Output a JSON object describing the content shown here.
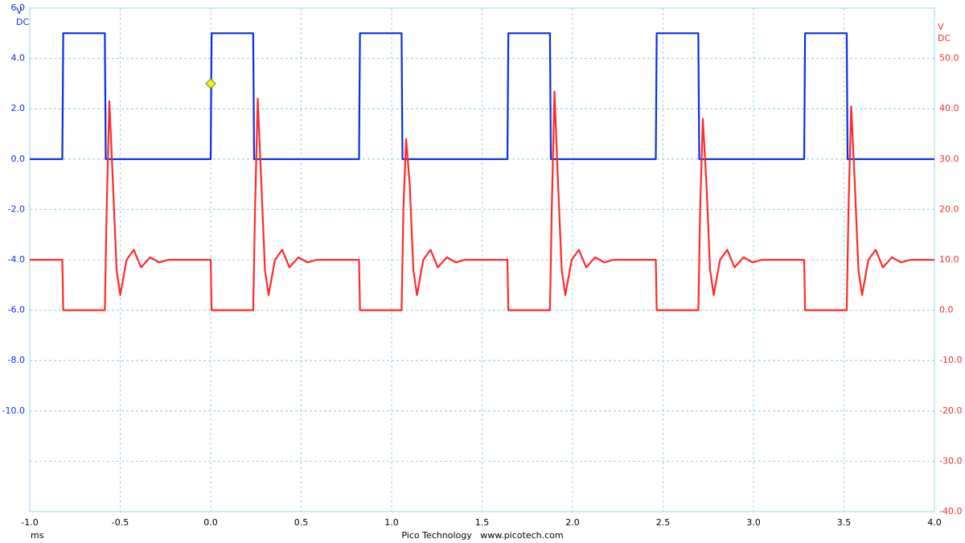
{
  "chart_data": {
    "type": "line",
    "y_unit": [
      "V",
      "DC"
    ],
    "y2_unit": [
      "V",
      "DC"
    ],
    "x_unit": "ms",
    "footer": "Pico Technology   www.picotech.com",
    "xlim": [
      -1.0,
      4.0
    ],
    "xticks": [
      {
        "value": -1.0,
        "label": "-1.0"
      },
      -0.5,
      {
        "value": 0,
        "label": "0.0"
      },
      0.5,
      {
        "value": 1,
        "label": "1.0"
      },
      1.5,
      {
        "value": 2,
        "label": "2.0"
      },
      2.5,
      {
        "value": 3,
        "label": "3.0"
      },
      3.5,
      {
        "value": 4,
        "label": "4.0"
      }
    ],
    "ylim": [
      -14,
      6
    ],
    "yticks": [
      {
        "value": 6,
        "label": "6.0"
      },
      {
        "value": 4,
        "label": "4.0"
      },
      {
        "value": 2,
        "label": "2.0"
      },
      {
        "value": 0,
        "label": "0.0"
      },
      {
        "value": -2,
        "label": "-2.0"
      },
      {
        "value": -4,
        "label": "-4.0"
      },
      {
        "value": -6,
        "label": "-6.0"
      },
      {
        "value": -8,
        "label": "-8.0"
      },
      {
        "value": -10,
        "label": "-10.0"
      }
    ],
    "y2lim": [
      -40,
      60
    ],
    "y2ticks": [
      {
        "value": 50,
        "label": "50.0"
      },
      {
        "value": 40,
        "label": "40.0"
      },
      {
        "value": 30,
        "label": "30.0"
      },
      {
        "value": 20,
        "label": "20.0"
      },
      {
        "value": 10,
        "label": "10.0"
      },
      {
        "value": 0,
        "label": "0.0"
      },
      {
        "value": -10,
        "label": "-10.0"
      },
      {
        "value": -20,
        "label": "-20.0"
      },
      {
        "value": -30,
        "label": "-30.0"
      },
      {
        "value": -40,
        "label": "-40.0"
      }
    ],
    "grid": true,
    "axis_colors": {
      "y": "#1030d8",
      "y2": "#f03030"
    },
    "trigger": {
      "x": 0,
      "y": 3,
      "color": "#f0f020"
    },
    "series": [
      {
        "color": "#0a2fdc",
        "axis": "y",
        "x": [
          -1.0,
          -0.82,
          -0.815,
          -0.585,
          -0.58,
          0.0,
          0.005,
          0.235,
          0.24,
          0.82,
          0.825,
          1.055,
          1.06,
          1.64,
          1.645,
          1.875,
          1.88,
          2.46,
          2.465,
          2.695,
          2.7,
          3.28,
          3.285,
          3.515,
          3.52,
          4.0
        ],
        "values": [
          0,
          0,
          5,
          5,
          0,
          0,
          5,
          5,
          0,
          0,
          5,
          5,
          0,
          0,
          5,
          5,
          0,
          0,
          5,
          5,
          0,
          0,
          5,
          5,
          0,
          0
        ]
      },
      {
        "color": "#ff2a2a",
        "axis": "y2",
        "x": [
          -1.0,
          -0.82,
          -0.815,
          -0.585,
          -0.575,
          -0.56,
          -0.54,
          -0.52,
          -0.5,
          -0.465,
          -0.425,
          -0.385,
          -0.335,
          -0.285,
          -0.235,
          0.0,
          0.005,
          0.235,
          0.245,
          0.26,
          0.28,
          0.3,
          0.32,
          0.355,
          0.395,
          0.435,
          0.485,
          0.535,
          0.585,
          0.82,
          0.825,
          1.055,
          1.065,
          1.08,
          1.1,
          1.12,
          1.14,
          1.175,
          1.215,
          1.255,
          1.305,
          1.355,
          1.405,
          1.64,
          1.645,
          1.875,
          1.885,
          1.9,
          1.92,
          1.94,
          1.96,
          1.995,
          2.035,
          2.075,
          2.125,
          2.175,
          2.225,
          2.46,
          2.465,
          2.695,
          2.705,
          2.72,
          2.74,
          2.76,
          2.78,
          2.815,
          2.855,
          2.895,
          2.945,
          2.995,
          3.045,
          3.28,
          3.285,
          3.515,
          3.525,
          3.54,
          3.56,
          3.58,
          3.6,
          3.635,
          3.675,
          3.715,
          3.765,
          3.815,
          3.865,
          4.0
        ],
        "values": [
          10,
          10,
          0,
          0,
          20,
          41.5,
          25,
          8,
          3,
          10,
          12,
          8.5,
          10.5,
          9.5,
          10,
          10,
          0,
          0,
          20,
          42,
          25,
          8,
          3,
          10,
          12,
          8.5,
          10.5,
          9.5,
          10,
          10,
          0,
          0,
          20,
          34,
          25,
          8,
          3,
          10,
          12,
          8.5,
          10.5,
          9.5,
          10,
          10,
          0,
          0,
          20,
          43.4,
          25,
          8,
          3,
          10,
          12,
          8.5,
          10.5,
          9.5,
          10,
          10,
          0,
          0,
          20,
          38,
          25,
          8,
          3,
          10,
          12,
          8.5,
          10.5,
          9.5,
          10,
          10,
          0,
          0,
          20,
          40.5,
          25,
          8,
          3,
          10,
          12,
          8.5,
          10.5,
          9.5,
          10,
          10
        ]
      }
    ]
  }
}
